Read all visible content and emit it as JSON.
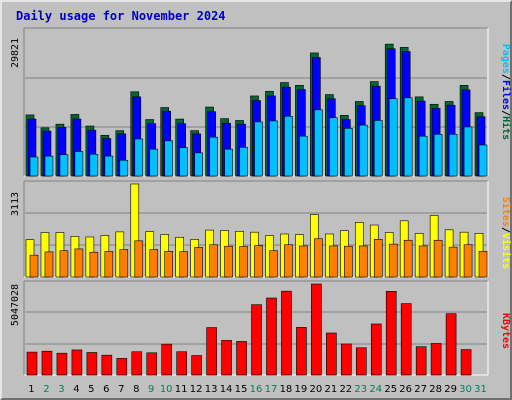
{
  "title": "Daily usage for November 2024",
  "colors": {
    "hits": "#006633",
    "files": "#0000ff",
    "pages": "#00c0ff",
    "visits": "#ffff00",
    "sites": "#ff8000",
    "kbytes": "#ff0000",
    "weekend_label": "#00805c",
    "weekday_label": "#000000"
  },
  "chart_data": [
    {
      "type": "bar",
      "name": "hits-files-pages",
      "ymax_label": "29821",
      "ylim": [
        0,
        29821
      ],
      "legend": [
        "Pages",
        "/",
        "Files",
        "/",
        "Hits"
      ],
      "legend_colors": [
        "#00c0ff",
        "#000000",
        "#0000ff",
        "#000000",
        "#006633"
      ],
      "categories": [
        "1",
        "2",
        "3",
        "4",
        "5",
        "6",
        "7",
        "8",
        "9",
        "10",
        "11",
        "12",
        "13",
        "14",
        "15",
        "16",
        "17",
        "18",
        "19",
        "20",
        "21",
        "22",
        "23",
        "24",
        "25",
        "26",
        "27",
        "28",
        "29",
        "30",
        "31"
      ],
      "series": [
        {
          "name": "Hits",
          "values": [
            13200,
            10400,
            11200,
            13300,
            10800,
            8800,
            9800,
            18200,
            12200,
            14800,
            12300,
            9800,
            14900,
            12400,
            12000,
            17300,
            18300,
            20200,
            19600,
            26600,
            17600,
            13100,
            16100,
            20400,
            28500,
            27800,
            17100,
            15500,
            16100,
            19600,
            13700
          ]
        },
        {
          "name": "Files",
          "values": [
            12300,
            9700,
            10500,
            12300,
            9900,
            8100,
            9100,
            17100,
            11300,
            14000,
            11300,
            9100,
            13900,
            11400,
            11200,
            16300,
            17300,
            19200,
            18700,
            25600,
            16700,
            12200,
            15200,
            19400,
            27500,
            26900,
            16200,
            14600,
            15300,
            18600,
            12800
          ]
        },
        {
          "name": "Pages",
          "values": [
            4100,
            4300,
            4600,
            5300,
            4700,
            4300,
            3400,
            8000,
            5800,
            7600,
            6100,
            5000,
            8400,
            5800,
            6200,
            11700,
            11900,
            12900,
            8600,
            14300,
            12600,
            10300,
            11000,
            12000,
            16700,
            16900,
            8600,
            9000,
            9000,
            10600,
            6700
          ]
        }
      ]
    },
    {
      "type": "bar",
      "name": "visits-sites",
      "ymax_label": "3113",
      "ylim": [
        0,
        3113
      ],
      "legend": [
        "Sites",
        "/",
        "Visits"
      ],
      "legend_colors": [
        "#ff8000",
        "#000000",
        "#ffff00"
      ],
      "categories": [
        "1",
        "2",
        "3",
        "4",
        "5",
        "6",
        "7",
        "8",
        "9",
        "10",
        "11",
        "12",
        "13",
        "14",
        "15",
        "16",
        "17",
        "18",
        "19",
        "20",
        "21",
        "22",
        "23",
        "24",
        "25",
        "26",
        "27",
        "28",
        "29",
        "30",
        "31"
      ],
      "series": [
        {
          "name": "Visits",
          "values": [
            1250,
            1490,
            1490,
            1360,
            1340,
            1390,
            1510,
            3113,
            1520,
            1420,
            1330,
            1260,
            1570,
            1560,
            1530,
            1500,
            1390,
            1440,
            1420,
            2090,
            1440,
            1550,
            1830,
            1740,
            1490,
            1880,
            1460,
            2060,
            1580,
            1500,
            1460
          ]
        },
        {
          "name": "Sites",
          "values": [
            730,
            840,
            880,
            940,
            830,
            860,
            920,
            1210,
            920,
            860,
            850,
            990,
            1080,
            1030,
            1020,
            1050,
            880,
            1080,
            1040,
            1280,
            1040,
            1030,
            1040,
            1260,
            1100,
            1230,
            1040,
            1230,
            1000,
            1080,
            860
          ]
        }
      ]
    },
    {
      "type": "bar",
      "name": "kbytes",
      "ymax_label": "5047028",
      "ylim": [
        0,
        5047028
      ],
      "legend": [
        "KBytes"
      ],
      "legend_colors": [
        "#ff0000"
      ],
      "categories": [
        "1",
        "2",
        "3",
        "4",
        "5",
        "6",
        "7",
        "8",
        "9",
        "10",
        "11",
        "12",
        "13",
        "14",
        "15",
        "16",
        "17",
        "18",
        "19",
        "20",
        "21",
        "22",
        "23",
        "24",
        "25",
        "26",
        "27",
        "28",
        "29",
        "30",
        "31"
      ],
      "series": [
        {
          "name": "KBytes",
          "values": [
            1270000,
            1320000,
            1210000,
            1390000,
            1250000,
            1100000,
            920000,
            1290000,
            1230000,
            1710000,
            1290000,
            1080000,
            2630000,
            1920000,
            1860000,
            3900000,
            4270000,
            4650000,
            2640000,
            5047028,
            2330000,
            1720000,
            1510000,
            2830000,
            4640000,
            3960000,
            1570000,
            1750000,
            3400000,
            1410000,
            0
          ]
        }
      ]
    }
  ],
  "day_labels": [
    "1",
    "2",
    "3",
    "4",
    "5",
    "6",
    "7",
    "8",
    "9",
    "10",
    "11",
    "12",
    "13",
    "14",
    "15",
    "16",
    "17",
    "18",
    "19",
    "20",
    "21",
    "22",
    "23",
    "24",
    "25",
    "26",
    "27",
    "28",
    "29",
    "30",
    "31"
  ],
  "weekend_days": [
    2,
    3,
    9,
    10,
    16,
    17,
    23,
    24,
    30,
    31
  ]
}
